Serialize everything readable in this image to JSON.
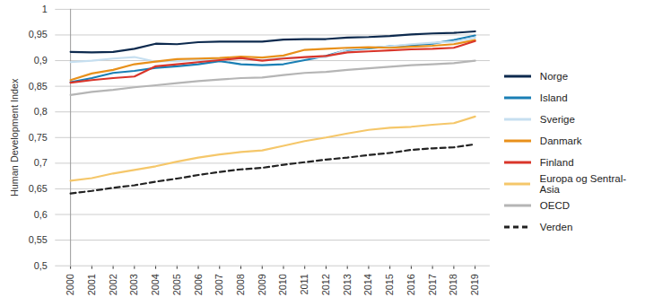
{
  "chart_data": {
    "type": "line",
    "y_label": "Human Development Index",
    "x": [
      2000,
      2001,
      2002,
      2003,
      2004,
      2005,
      2006,
      2007,
      2008,
      2009,
      2010,
      2011,
      2012,
      2013,
      2014,
      2015,
      2016,
      2017,
      2018,
      2019
    ],
    "ylim": [
      0.5,
      1
    ],
    "yticks": [
      {
        "value": 0.5,
        "label": "0,5"
      },
      {
        "value": 0.55,
        "label": "0,55"
      },
      {
        "value": 0.6,
        "label": "0,6"
      },
      {
        "value": 0.65,
        "label": "0,65"
      },
      {
        "value": 0.7,
        "label": "0,7"
      },
      {
        "value": 0.75,
        "label": "0,75"
      },
      {
        "value": 0.8,
        "label": "0,8"
      },
      {
        "value": 0.85,
        "label": "0,85"
      },
      {
        "value": 0.9,
        "label": "0,9"
      },
      {
        "value": 0.95,
        "label": "0,95"
      },
      1
    ],
    "grid": true,
    "legend": "right",
    "series": [
      {
        "name": "Norge",
        "color": "#0d2a4e",
        "values": [
          0.917,
          0.916,
          0.917,
          0.923,
          0.933,
          0.932,
          0.936,
          0.937,
          0.937,
          0.937,
          0.941,
          0.942,
          0.942,
          0.945,
          0.946,
          0.948,
          0.951,
          0.953,
          0.954,
          0.957
        ]
      },
      {
        "name": "Island",
        "color": "#1a7fb5",
        "values": [
          0.858,
          0.866,
          0.876,
          0.88,
          0.886,
          0.889,
          0.893,
          0.899,
          0.893,
          0.891,
          0.893,
          0.901,
          0.909,
          0.921,
          0.924,
          0.928,
          0.93,
          0.933,
          0.94,
          0.949
        ]
      },
      {
        "name": "Sverige",
        "color": "#c6dff0",
        "values": [
          0.897,
          0.9,
          0.904,
          0.907,
          0.898,
          0.899,
          0.902,
          0.902,
          0.904,
          0.901,
          0.905,
          0.906,
          0.907,
          0.922,
          0.925,
          0.928,
          0.932,
          0.935,
          0.937,
          0.945
        ]
      },
      {
        "name": "Danmark",
        "color": "#e8901a",
        "values": [
          0.862,
          0.875,
          0.882,
          0.893,
          0.898,
          0.903,
          0.904,
          0.905,
          0.908,
          0.906,
          0.91,
          0.921,
          0.923,
          0.925,
          0.926,
          0.925,
          0.927,
          0.929,
          0.932,
          0.94
        ]
      },
      {
        "name": "Finland",
        "color": "#d9352a",
        "values": [
          0.857,
          0.862,
          0.866,
          0.869,
          0.889,
          0.893,
          0.897,
          0.901,
          0.905,
          0.9,
          0.904,
          0.907,
          0.909,
          0.916,
          0.918,
          0.92,
          0.922,
          0.923,
          0.925,
          0.938
        ]
      },
      {
        "name": "Europa og Sentral-Asia",
        "color": "#f5c76a",
        "values": [
          0.666,
          0.671,
          0.68,
          0.687,
          0.694,
          0.703,
          0.711,
          0.717,
          0.722,
          0.725,
          0.734,
          0.743,
          0.75,
          0.758,
          0.765,
          0.769,
          0.771,
          0.775,
          0.778,
          0.791
        ]
      },
      {
        "name": "OECD",
        "color": "#b5b5b5",
        "values": [
          0.833,
          0.839,
          0.843,
          0.848,
          0.852,
          0.856,
          0.86,
          0.863,
          0.866,
          0.867,
          0.872,
          0.876,
          0.878,
          0.882,
          0.885,
          0.888,
          0.891,
          0.893,
          0.895,
          0.9
        ]
      },
      {
        "name": "Verden",
        "color": "#222222",
        "line_style": "dashed",
        "values": [
          0.641,
          0.646,
          0.652,
          0.657,
          0.664,
          0.67,
          0.677,
          0.683,
          0.688,
          0.691,
          0.697,
          0.702,
          0.707,
          0.711,
          0.716,
          0.72,
          0.726,
          0.729,
          0.731,
          0.737
        ]
      }
    ]
  }
}
